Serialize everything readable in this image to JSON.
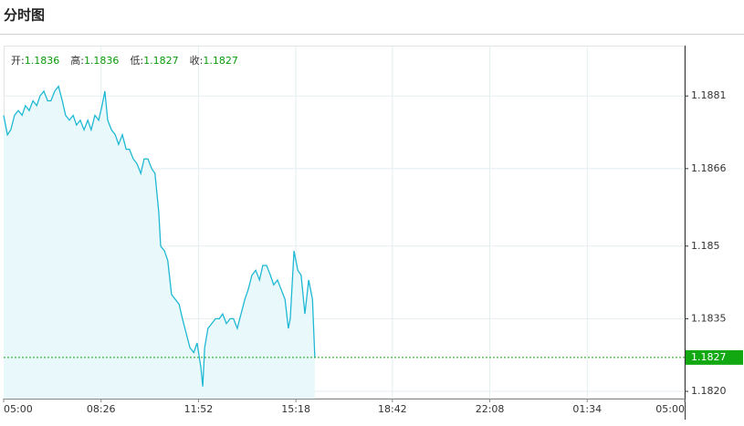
{
  "chart_data": {
    "type": "line",
    "title": "分时图",
    "stats": [
      {
        "label": "开:",
        "value": 1.1836
      },
      {
        "label": "高:",
        "value": 1.1836
      },
      {
        "label": "低:",
        "value": 1.1827
      },
      {
        "label": "收:",
        "value": 1.1827
      }
    ],
    "stats_color": "#0a9a0a",
    "last_price": 1.1827,
    "last_price_color": "#12a812",
    "color": "#1fb8d4",
    "fill": "#e9f9fb",
    "grid": true,
    "xlim": [
      "05:00",
      "05:00"
    ],
    "xticks": [
      "05:00",
      "08:26",
      "11:52",
      "15:18",
      "18:42",
      "22:08",
      "01:34",
      "05:00"
    ],
    "ylim": [
      1.18185,
      1.18914
    ],
    "yticks": [
      1.1881,
      1.1866,
      1.185,
      1.1835,
      {
        "value": 1.182,
        "label": "1.1820"
      }
    ],
    "x": [
      "05:00",
      "05:08",
      "05:15",
      "05:23",
      "05:31",
      "05:39",
      "05:46",
      "05:54",
      "06:02",
      "06:10",
      "06:17",
      "06:25",
      "06:33",
      "06:40",
      "06:48",
      "06:56",
      "07:04",
      "07:11",
      "07:19",
      "07:27",
      "07:34",
      "07:42",
      "07:50",
      "07:58",
      "08:05",
      "08:13",
      "08:21",
      "08:28",
      "08:34",
      "08:40",
      "08:48",
      "08:56",
      "09:03",
      "09:11",
      "09:19",
      "09:26",
      "09:34",
      "09:42",
      "09:50",
      "09:57",
      "10:05",
      "10:13",
      "10:20",
      "10:28",
      "10:32",
      "10:40",
      "10:47",
      "10:55",
      "11:03",
      "11:11",
      "11:18",
      "11:26",
      "11:34",
      "11:42",
      "11:49",
      "11:57",
      "12:01",
      "12:05",
      "12:12",
      "12:20",
      "12:28",
      "12:36",
      "12:43",
      "12:51",
      "12:59",
      "13:06",
      "13:14",
      "13:22",
      "13:30",
      "13:37",
      "13:45",
      "13:53",
      "14:01",
      "14:08",
      "14:16",
      "14:24",
      "14:31",
      "14:39",
      "14:47",
      "14:55",
      "15:02",
      "15:06",
      "15:14",
      "15:22",
      "15:29",
      "15:37",
      "15:45",
      "15:53",
      "15:58"
    ],
    "values": [
      1.1877,
      1.1873,
      1.1874,
      1.1877,
      1.1878,
      1.1877,
      1.1879,
      1.1878,
      1.188,
      1.1879,
      1.1881,
      1.1882,
      1.188,
      1.188,
      1.1882,
      1.1883,
      1.188,
      1.1877,
      1.1876,
      1.1877,
      1.1875,
      1.1876,
      1.1874,
      1.1876,
      1.1874,
      1.1877,
      1.1876,
      1.1879,
      1.1882,
      1.1876,
      1.1874,
      1.1873,
      1.1871,
      1.1873,
      1.187,
      1.187,
      1.1868,
      1.1867,
      1.1865,
      1.1868,
      1.1868,
      1.1866,
      1.1865,
      1.1857,
      1.185,
      1.1849,
      1.1847,
      1.184,
      1.1839,
      1.1838,
      1.1835,
      1.1832,
      1.1829,
      1.1828,
      1.183,
      1.1825,
      1.1821,
      1.1829,
      1.1833,
      1.1834,
      1.1835,
      1.1835,
      1.1836,
      1.1834,
      1.1835,
      1.1835,
      1.1833,
      1.1836,
      1.1839,
      1.1841,
      1.1844,
      1.1845,
      1.1843,
      1.1846,
      1.1846,
      1.1844,
      1.1842,
      1.1843,
      1.1841,
      1.1839,
      1.1833,
      1.1835,
      1.1849,
      1.1845,
      1.1844,
      1.1836,
      1.1843,
      1.1839,
      1.1827
    ]
  }
}
